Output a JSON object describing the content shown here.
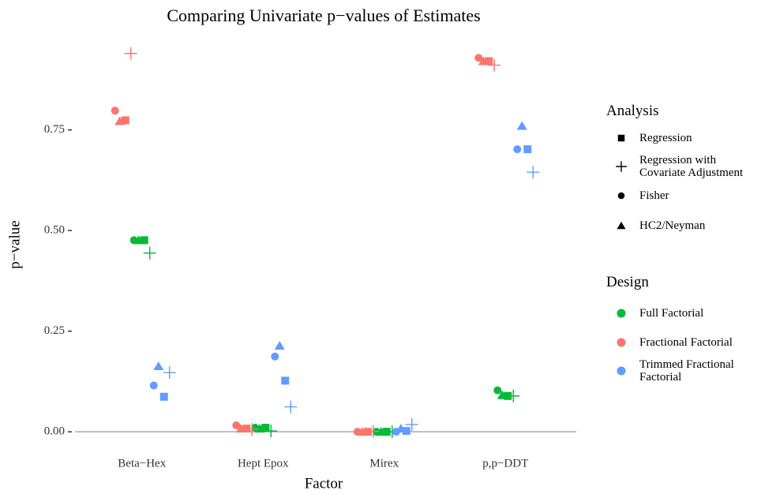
{
  "chart_data": {
    "type": "scatter",
    "title": "Comparing Univariate p−values of Estimates",
    "x_label": "Factor",
    "y_label": "p−value",
    "categories": [
      "Beta−Hex",
      "Hept Epox",
      "Mirex",
      "p,p−DDT"
    ],
    "ylim": [
      -0.035,
      0.965
    ],
    "yticks": [
      {
        "value": 0,
        "label": "0.00"
      },
      0.25,
      {
        "value": 0.5,
        "label": "0.50"
      },
      0.75
    ],
    "hline": 0,
    "analysis": {
      "title": "Analysis",
      "items": [
        {
          "name": "Regression",
          "shape": "square"
        },
        {
          "name": "Regression with\nCovariate Adjustment",
          "shape": "plus"
        },
        {
          "name": "Fisher",
          "shape": "circle"
        },
        {
          "name": "HC2/Neyman",
          "shape": "triangle"
        }
      ]
    },
    "design": {
      "title": "Design",
      "items": [
        {
          "name": "Full Factorial",
          "color": "#00ba38",
          "values": [
            [
              0.476,
              0.01,
              0.0,
              0.089
            ],
            [
              0.444,
              0.002,
              0.0,
              0.089
            ],
            [
              0.476,
              0.01,
              0.0,
              0.103
            ],
            [
              0.476,
              0.008,
              0.0,
              0.091
            ]
          ]
        },
        {
          "name": "Fractional Factorial",
          "color": "#f8766d",
          "values": [
            [
              0.774,
              0.008,
              0.0,
              0.921
            ],
            [
              0.94,
              0.006,
              0.001,
              0.911
            ],
            [
              0.798,
              0.016,
              0.0,
              0.929
            ],
            [
              0.772,
              0.008,
              0.0,
              0.921
            ]
          ]
        },
        {
          "name": "Trimmed Fractional\nFactorial",
          "color": "#619cff",
          "values": [
            [
              0.087,
              0.127,
              0.002,
              0.702
            ],
            [
              0.147,
              0.062,
              0.018,
              0.645
            ],
            [
              0.115,
              0.187,
              0.0,
              0.702
            ],
            [
              0.163,
              0.214,
              0.008,
              0.76
            ]
          ]
        }
      ]
    }
  }
}
